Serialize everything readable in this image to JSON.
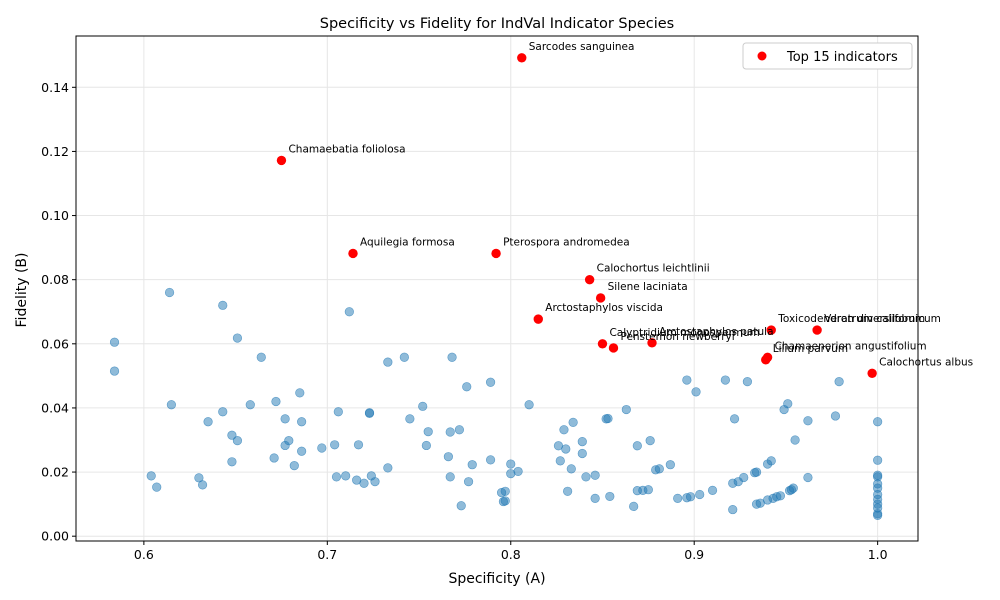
{
  "chart_data": {
    "type": "scatter",
    "title": "Specificity vs Fidelity for IndVal Indicator Species",
    "xlabel": "Specificity (A)",
    "ylabel": "Fidelity (B)",
    "xlim": [
      0.563,
      1.022
    ],
    "ylim": [
      -0.0015,
      0.156
    ],
    "xticks": [
      0.6,
      0.7,
      0.8,
      0.9,
      1.0
    ],
    "yticks": [
      0.0,
      0.02,
      0.04,
      0.06,
      0.08,
      0.1,
      0.12,
      0.14
    ],
    "xtick_labels": [
      "0.6",
      "0.7",
      "0.8",
      "0.9",
      "1.0"
    ],
    "ytick_labels": [
      "0.00",
      "0.02",
      "0.04",
      "0.06",
      "0.08",
      "0.10",
      "0.12",
      "0.14"
    ],
    "grid": true,
    "legend_position": "top-right",
    "colors": {
      "all": "#1f77b4",
      "top": "#ff0000"
    },
    "series": [
      {
        "name": "",
        "points": [
          [
            0.584,
            0.0605
          ],
          [
            0.584,
            0.0515
          ],
          [
            0.604,
            0.0188
          ],
          [
            0.607,
            0.0153
          ],
          [
            0.614,
            0.076
          ],
          [
            0.615,
            0.041
          ],
          [
            0.63,
            0.0182
          ],
          [
            0.632,
            0.016
          ],
          [
            0.635,
            0.0357
          ],
          [
            0.643,
            0.072
          ],
          [
            0.643,
            0.0388
          ],
          [
            0.648,
            0.0315
          ],
          [
            0.648,
            0.0232
          ],
          [
            0.651,
            0.0618
          ],
          [
            0.651,
            0.0298
          ],
          [
            0.658,
            0.041
          ],
          [
            0.664,
            0.0558
          ],
          [
            0.671,
            0.0244
          ],
          [
            0.672,
            0.042
          ],
          [
            0.677,
            0.0366
          ],
          [
            0.677,
            0.0283
          ],
          [
            0.679,
            0.0298
          ],
          [
            0.682,
            0.022
          ],
          [
            0.685,
            0.0447
          ],
          [
            0.686,
            0.0357
          ],
          [
            0.686,
            0.0265
          ],
          [
            0.697,
            0.0275
          ],
          [
            0.704,
            0.0285
          ],
          [
            0.705,
            0.0185
          ],
          [
            0.706,
            0.0388
          ],
          [
            0.71,
            0.0188
          ],
          [
            0.712,
            0.07
          ],
          [
            0.716,
            0.0175
          ],
          [
            0.717,
            0.0285
          ],
          [
            0.72,
            0.0165
          ],
          [
            0.723,
            0.0383
          ],
          [
            0.723,
            0.0385
          ],
          [
            0.724,
            0.0188
          ],
          [
            0.726,
            0.017
          ],
          [
            0.733,
            0.0543
          ],
          [
            0.733,
            0.0213
          ],
          [
            0.742,
            0.0558
          ],
          [
            0.745,
            0.0366
          ],
          [
            0.752,
            0.0405
          ],
          [
            0.754,
            0.0283
          ],
          [
            0.755,
            0.0326
          ],
          [
            0.766,
            0.0248
          ],
          [
            0.767,
            0.0185
          ],
          [
            0.767,
            0.0325
          ],
          [
            0.768,
            0.0558
          ],
          [
            0.772,
            0.0332
          ],
          [
            0.773,
            0.0095
          ],
          [
            0.776,
            0.0466
          ],
          [
            0.777,
            0.017
          ],
          [
            0.779,
            0.0223
          ],
          [
            0.789,
            0.0238
          ],
          [
            0.789,
            0.048
          ],
          [
            0.795,
            0.0136
          ],
          [
            0.796,
            0.0108
          ],
          [
            0.797,
            0.011
          ],
          [
            0.797,
            0.014
          ],
          [
            0.8,
            0.0195
          ],
          [
            0.8,
            0.0225
          ],
          [
            0.804,
            0.0202
          ],
          [
            0.81,
            0.041
          ],
          [
            0.826,
            0.0282
          ],
          [
            0.827,
            0.0235
          ],
          [
            0.829,
            0.0332
          ],
          [
            0.83,
            0.0272
          ],
          [
            0.831,
            0.014
          ],
          [
            0.833,
            0.021
          ],
          [
            0.834,
            0.0355
          ],
          [
            0.839,
            0.0295
          ],
          [
            0.839,
            0.0258
          ],
          [
            0.841,
            0.0185
          ],
          [
            0.846,
            0.019
          ],
          [
            0.846,
            0.0118
          ],
          [
            0.852,
            0.0366
          ],
          [
            0.853,
            0.0367
          ],
          [
            0.854,
            0.0124
          ],
          [
            0.863,
            0.0395
          ],
          [
            0.867,
            0.0093
          ],
          [
            0.869,
            0.0282
          ],
          [
            0.869,
            0.0142
          ],
          [
            0.872,
            0.0143
          ],
          [
            0.875,
            0.0145
          ],
          [
            0.876,
            0.0298
          ],
          [
            0.879,
            0.0207
          ],
          [
            0.881,
            0.021
          ],
          [
            0.887,
            0.0223
          ],
          [
            0.891,
            0.0118
          ],
          [
            0.896,
            0.0487
          ],
          [
            0.896,
            0.012
          ],
          [
            0.898,
            0.0123
          ],
          [
            0.901,
            0.045
          ],
          [
            0.903,
            0.013
          ],
          [
            0.91,
            0.0143
          ],
          [
            0.917,
            0.0487
          ],
          [
            0.921,
            0.0083
          ],
          [
            0.921,
            0.0165
          ],
          [
            0.922,
            0.0366
          ],
          [
            0.924,
            0.017
          ],
          [
            0.927,
            0.0183
          ],
          [
            0.929,
            0.0482
          ],
          [
            0.933,
            0.0198
          ],
          [
            0.934,
            0.02
          ],
          [
            0.934,
            0.01
          ],
          [
            0.936,
            0.0103
          ],
          [
            0.94,
            0.0225
          ],
          [
            0.94,
            0.0113
          ],
          [
            0.942,
            0.0235
          ],
          [
            0.943,
            0.0118
          ],
          [
            0.945,
            0.0123
          ],
          [
            0.947,
            0.0126
          ],
          [
            0.949,
            0.0395
          ],
          [
            0.951,
            0.0413
          ],
          [
            0.952,
            0.0142
          ],
          [
            0.953,
            0.0145
          ],
          [
            0.954,
            0.015
          ],
          [
            0.955,
            0.03
          ],
          [
            0.962,
            0.036
          ],
          [
            0.962,
            0.0183
          ],
          [
            0.977,
            0.0375
          ],
          [
            0.979,
            0.0482
          ],
          [
            1.0,
            0.0357
          ],
          [
            1.0,
            0.0237
          ],
          [
            1.0,
            0.019
          ],
          [
            1.0,
            0.0185
          ],
          [
            1.0,
            0.0163
          ],
          [
            1.0,
            0.015
          ],
          [
            1.0,
            0.013
          ],
          [
            1.0,
            0.0115
          ],
          [
            1.0,
            0.01
          ],
          [
            1.0,
            0.0088
          ],
          [
            1.0,
            0.007
          ],
          [
            1.0,
            0.0065
          ]
        ]
      },
      {
        "name": "Top 15 indicators",
        "points": [
          [
            0.806,
            0.1492
          ],
          [
            0.675,
            0.1172
          ],
          [
            0.714,
            0.0882
          ],
          [
            0.792,
            0.0882
          ],
          [
            0.843,
            0.08
          ],
          [
            0.849,
            0.0743
          ],
          [
            0.815,
            0.0677
          ],
          [
            0.942,
            0.0643
          ],
          [
            0.967,
            0.0643
          ],
          [
            0.85,
            0.06
          ],
          [
            0.877,
            0.0603
          ],
          [
            0.856,
            0.0587
          ],
          [
            0.94,
            0.0558
          ],
          [
            0.939,
            0.055
          ],
          [
            0.997,
            0.0508
          ]
        ],
        "labels": [
          "Sarcodes sanguinea",
          "Chamaebatia foliolosa",
          "Aquilegia formosa",
          "Pterospora andromedea",
          "Calochortus leichtlinii",
          "Silene laciniata",
          "Arctostaphylos viscida",
          "Toxicodendron diversilobum",
          "Veratrum californicum",
          "Calyptridium monospermum",
          "Arctostaphylos patula",
          "Penstemon newberryi",
          "Chamaenerion angustifolium",
          "Lilium parvum",
          "Calochortus albus"
        ]
      }
    ]
  }
}
